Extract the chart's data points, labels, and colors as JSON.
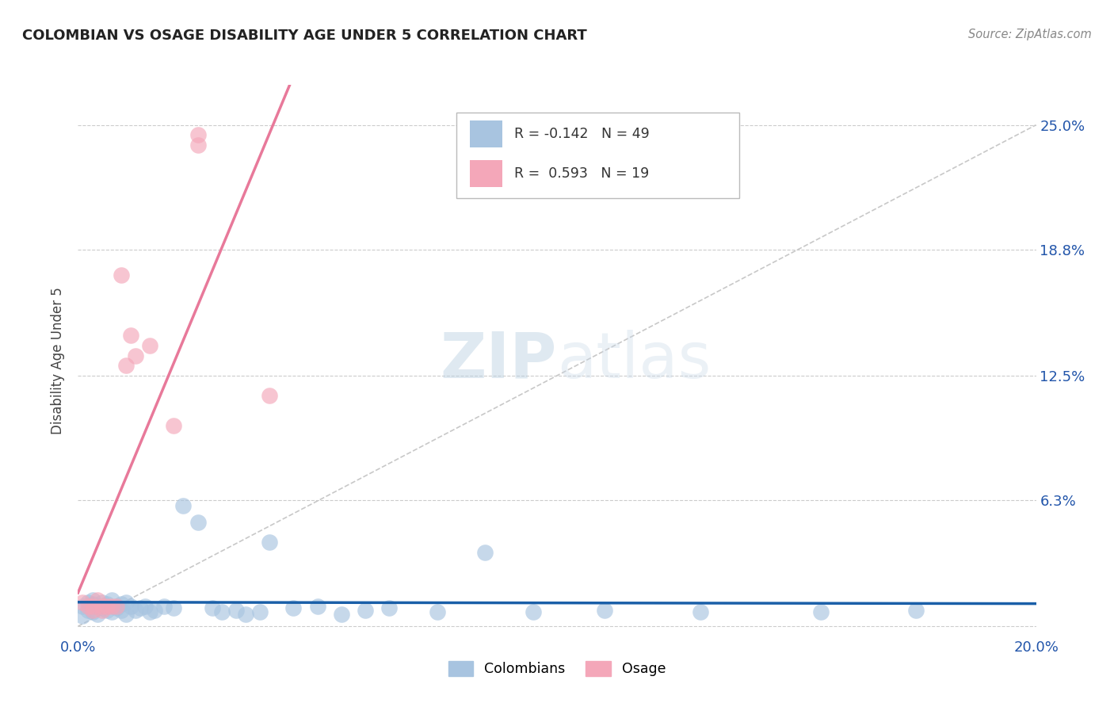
{
  "title": "COLOMBIAN VS OSAGE DISABILITY AGE UNDER 5 CORRELATION CHART",
  "source": "Source: ZipAtlas.com",
  "ylabel_label": "Disability Age Under 5",
  "x_min": 0.0,
  "x_max": 0.2,
  "y_min": -0.005,
  "y_max": 0.27,
  "colombian_color": "#a8c4e0",
  "osage_color": "#f4a7b9",
  "colombian_line_color": "#1a5fa8",
  "osage_line_color": "#e8799a",
  "diag_line_color": "#c8c8c8",
  "watermark_color": "#c8d8e8",
  "background_color": "#ffffff",
  "colombian_scatter_x": [
    0.001,
    0.001,
    0.002,
    0.002,
    0.003,
    0.003,
    0.003,
    0.004,
    0.004,
    0.005,
    0.005,
    0.006,
    0.006,
    0.007,
    0.007,
    0.008,
    0.008,
    0.009,
    0.009,
    0.01,
    0.01,
    0.011,
    0.012,
    0.013,
    0.014,
    0.015,
    0.016,
    0.018,
    0.02,
    0.022,
    0.025,
    0.028,
    0.03,
    0.033,
    0.035,
    0.038,
    0.04,
    0.045,
    0.05,
    0.055,
    0.06,
    0.065,
    0.075,
    0.085,
    0.095,
    0.11,
    0.13,
    0.155,
    0.175
  ],
  "colombian_scatter_y": [
    0.01,
    0.005,
    0.012,
    0.008,
    0.013,
    0.007,
    0.011,
    0.01,
    0.006,
    0.012,
    0.009,
    0.011,
    0.008,
    0.013,
    0.007,
    0.01,
    0.009,
    0.011,
    0.008,
    0.012,
    0.006,
    0.01,
    0.008,
    0.009,
    0.01,
    0.007,
    0.008,
    0.01,
    0.009,
    0.06,
    0.052,
    0.009,
    0.007,
    0.008,
    0.006,
    0.007,
    0.042,
    0.009,
    0.01,
    0.006,
    0.008,
    0.009,
    0.007,
    0.037,
    0.007,
    0.008,
    0.007,
    0.007,
    0.008
  ],
  "osage_scatter_x": [
    0.001,
    0.002,
    0.003,
    0.003,
    0.004,
    0.005,
    0.005,
    0.006,
    0.007,
    0.008,
    0.009,
    0.01,
    0.011,
    0.012,
    0.015,
    0.02,
    0.025,
    0.025,
    0.04
  ],
  "osage_scatter_y": [
    0.012,
    0.01,
    0.01,
    0.008,
    0.013,
    0.01,
    0.008,
    0.01,
    0.01,
    0.01,
    0.175,
    0.13,
    0.145,
    0.135,
    0.14,
    0.1,
    0.245,
    0.24,
    0.115
  ],
  "legend_text_col": "R = -0.142   N = 49",
  "legend_text_osa": "R =  0.593   N = 19",
  "legend_label_col": "Colombians",
  "legend_label_osa": "Osage"
}
